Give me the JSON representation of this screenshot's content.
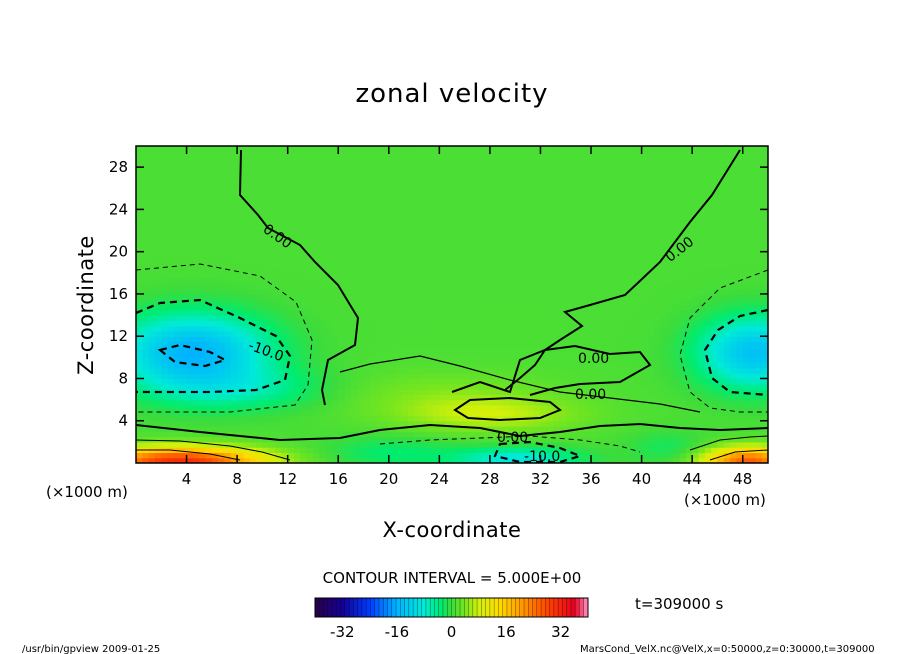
{
  "chart_data": {
    "type": "heatmap",
    "title": "zonal velocity",
    "xlabel": "X-coordinate",
    "ylabel": "Z-coordinate",
    "x_unit": "(×1000 m)",
    "y_unit": "(×1000 m)",
    "xlim": [
      0,
      50
    ],
    "ylim": [
      0,
      30
    ],
    "x_ticks": [
      "4",
      "8",
      "12",
      "16",
      "20",
      "24",
      "28",
      "32",
      "36",
      "40",
      "44",
      "48"
    ],
    "y_ticks": [
      "4",
      "8",
      "12",
      "16",
      "20",
      "24",
      "28"
    ],
    "contour_interval_text": "CONTOUR INTERVAL = 5.000E+00",
    "contour_labels": [
      "0.00",
      "0.00",
      "-10.0",
      "0.00",
      "0.00",
      "0.00",
      "-10.0"
    ],
    "colorbar": {
      "min": -40,
      "max": 40,
      "tick_labels": [
        "-32",
        "-16",
        "0",
        "16",
        "32"
      ],
      "tick_values": [
        -32,
        -16,
        0,
        16,
        32
      ]
    },
    "time_label": "t=309000 s",
    "footer_left": "/usr/bin/gpview  2009-01-25",
    "footer_right": "MarsCond_VelX.nc@VelX,x=0:50000,z=0:30000,t=309000",
    "features": [
      {
        "kind": "jet",
        "x": 4.5,
        "z": 10.5,
        "value": -16
      },
      {
        "kind": "jet",
        "x": 48,
        "z": 10.5,
        "value": -14
      },
      {
        "kind": "jet",
        "x": 28,
        "z": 4.5,
        "value": 8
      },
      {
        "kind": "surface-inflow",
        "x": [
          0,
          11
        ],
        "z": [
          0,
          2
        ],
        "value": 30
      },
      {
        "kind": "surface-inflow",
        "x": [
          45,
          50
        ],
        "z": [
          0,
          2
        ],
        "value": 28
      },
      {
        "kind": "surface-return",
        "x": [
          24,
          36
        ],
        "z": [
          0,
          2
        ],
        "value": -12
      }
    ],
    "grid": false
  }
}
